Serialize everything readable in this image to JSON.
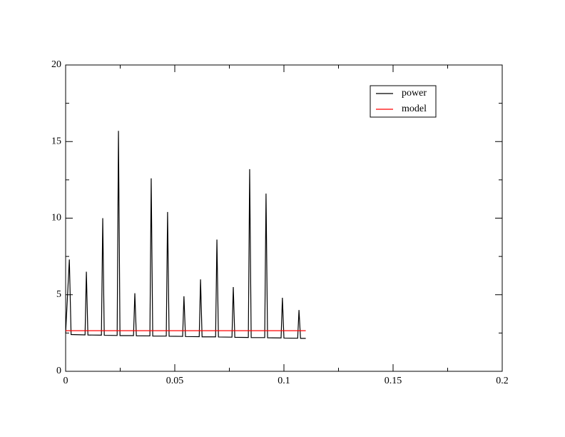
{
  "chart_data": {
    "type": "line",
    "series": [
      {
        "name": "power",
        "color": "#000000",
        "x": [
          0,
          0.0017,
          0.0025,
          0.0089,
          0.0095,
          0.0102,
          0.0164,
          0.017,
          0.0177,
          0.0236,
          0.0242,
          0.0249,
          0.0311,
          0.0317,
          0.0324,
          0.0386,
          0.0392,
          0.0399,
          0.0461,
          0.0467,
          0.0474,
          0.0536,
          0.0542,
          0.0549,
          0.0612,
          0.0618,
          0.0625,
          0.0687,
          0.0693,
          0.07,
          0.0762,
          0.0768,
          0.0775,
          0.0837,
          0.0843,
          0.085,
          0.0912,
          0.0918,
          0.0925,
          0.0987,
          0.0993,
          0.1,
          0.1063,
          0.1069,
          0.1076,
          0.11
        ],
        "values": [
          2.5,
          7.3,
          2.4,
          2.38,
          6.5,
          2.37,
          2.36,
          10.0,
          2.35,
          2.34,
          15.7,
          2.33,
          2.33,
          5.1,
          2.32,
          2.31,
          12.6,
          2.3,
          2.3,
          10.4,
          2.29,
          2.28,
          4.9,
          2.27,
          2.26,
          6.0,
          2.25,
          2.25,
          8.6,
          2.24,
          2.23,
          5.5,
          2.22,
          2.21,
          13.2,
          2.2,
          2.2,
          11.6,
          2.19,
          2.18,
          4.8,
          2.17,
          2.16,
          4.0,
          2.15,
          2.15
        ]
      },
      {
        "name": "model",
        "color": "#ff0000",
        "x": [
          0,
          0.11
        ],
        "values": [
          2.65,
          2.65
        ]
      }
    ],
    "xlim": [
      0,
      0.2
    ],
    "xticks": [
      0,
      0.05,
      0.1,
      0.15,
      0.2
    ],
    "xminorticks": [
      0.025,
      0.075,
      0.125,
      0.175
    ],
    "ylim": [
      0,
      20
    ],
    "yticks": [
      0,
      5,
      10,
      15,
      20
    ],
    "yminorticks": [
      2.5,
      7.5,
      12.5,
      17.5
    ],
    "legend": "upper right"
  }
}
